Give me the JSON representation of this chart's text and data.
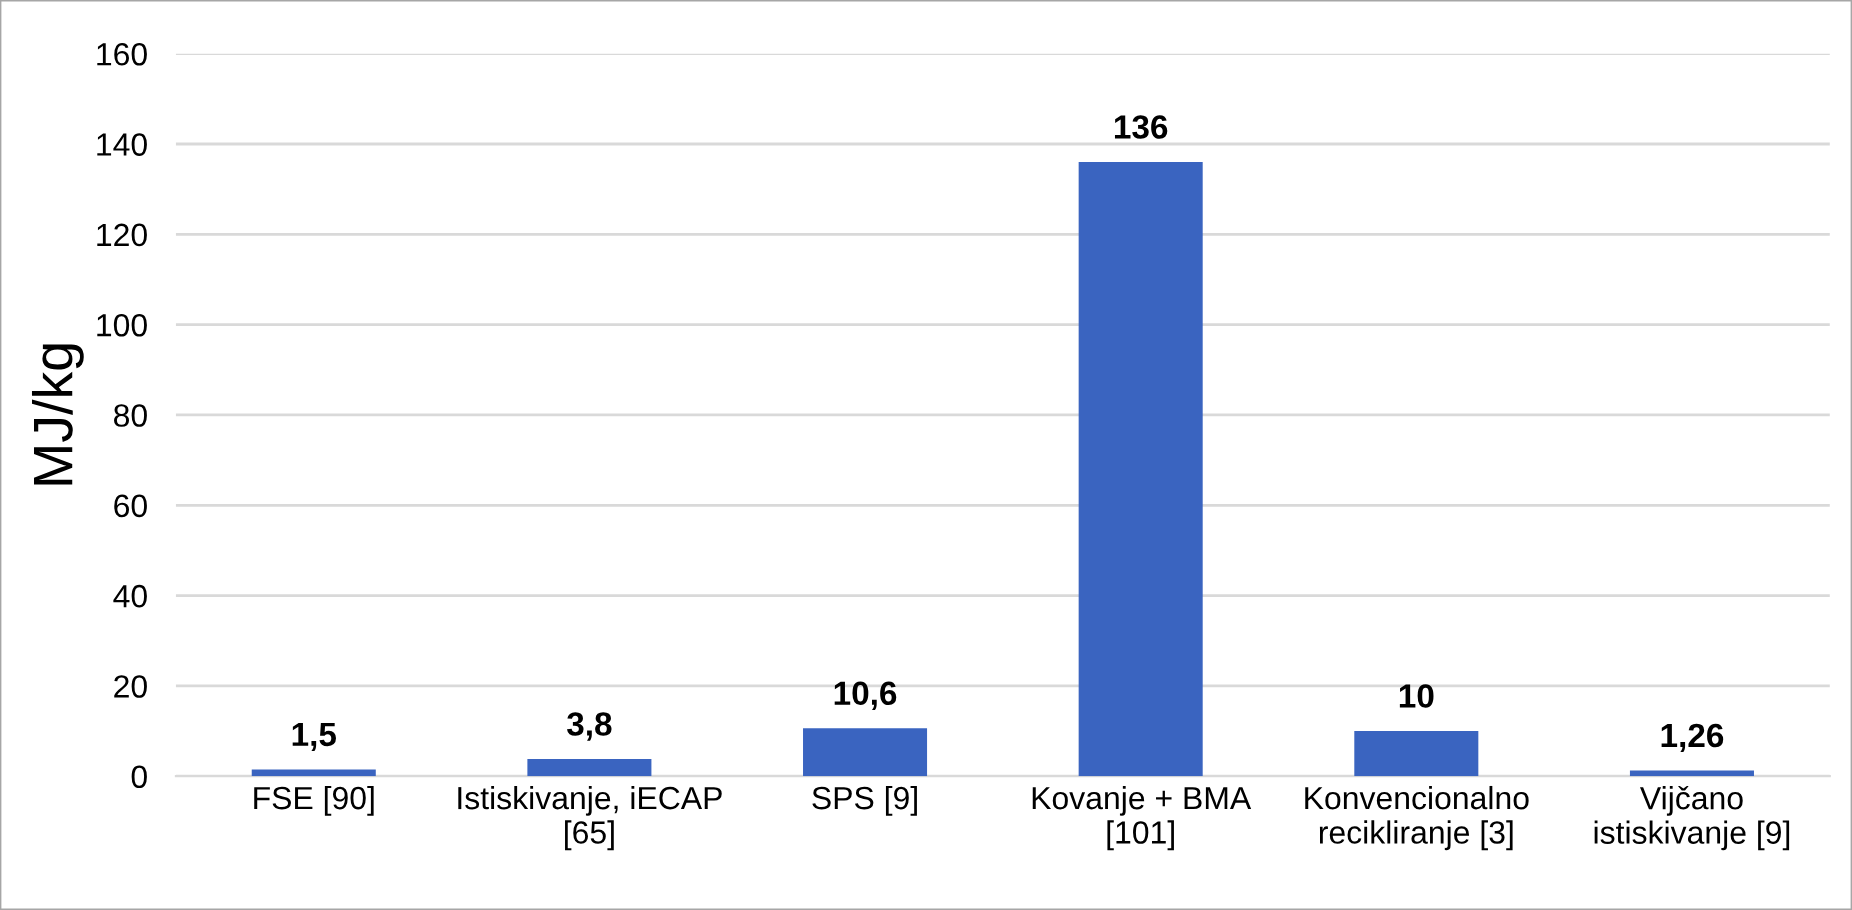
{
  "chart_data": {
    "type": "bar",
    "ylabel": "MJ/kg",
    "categories": [
      "FSE [90]",
      "Istiskivanje, iECAP\n[65]",
      "SPS [9]",
      "Kovanje + BMA\n[101]",
      "Konvencionalno\nrecikliranje [3]",
      "Vijčano\nistiskivanje [9]"
    ],
    "values": [
      1.5,
      3.8,
      10.6,
      136,
      10,
      1.26
    ],
    "value_labels": [
      "1,5",
      "3,8",
      "10,6",
      "136",
      "10",
      "1,26"
    ],
    "color": "#3a64c0",
    "ylim": [
      0,
      160
    ],
    "yticks": [
      0,
      20,
      40,
      60,
      80,
      100,
      120,
      140,
      160
    ],
    "grid": "y"
  }
}
